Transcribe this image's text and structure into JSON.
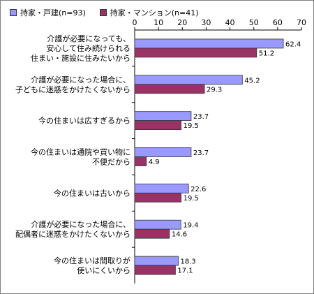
{
  "chart_data": {
    "type": "bar",
    "orientation": "horizontal",
    "categories": [
      [
        "介護が必要になっても、",
        "安心して住み続けられる",
        "住まい・施設に住みたいから"
      ],
      [
        "介護が必要になった場合に、",
        "子どもに迷惑をかけたくないから"
      ],
      [
        "今の住まいは広すぎるから"
      ],
      [
        "今の住まいは通院や買い物に",
        "不便だから"
      ],
      [
        "今の住まいは古いから"
      ],
      [
        "介護が必要になった場合に、",
        "配偶者に迷惑をかけたくないから"
      ],
      [
        "今の住まいは間取りが",
        "使いにくいから"
      ]
    ],
    "series": [
      {
        "name": "持家・戸建(n=93)",
        "color": "#9999FF",
        "values": [
          62.4,
          45.2,
          23.7,
          23.7,
          22.6,
          19.4,
          18.3
        ]
      },
      {
        "name": "持家・マンション(n=41)",
        "color": "#993366",
        "values": [
          51.2,
          29.3,
          19.5,
          4.9,
          19.5,
          14.6,
          17.1
        ]
      }
    ],
    "xlim": [
      0,
      70
    ],
    "xticks": [
      0,
      10,
      20,
      30,
      40,
      50,
      60,
      70
    ],
    "legend_position": "top",
    "grid": false
  }
}
